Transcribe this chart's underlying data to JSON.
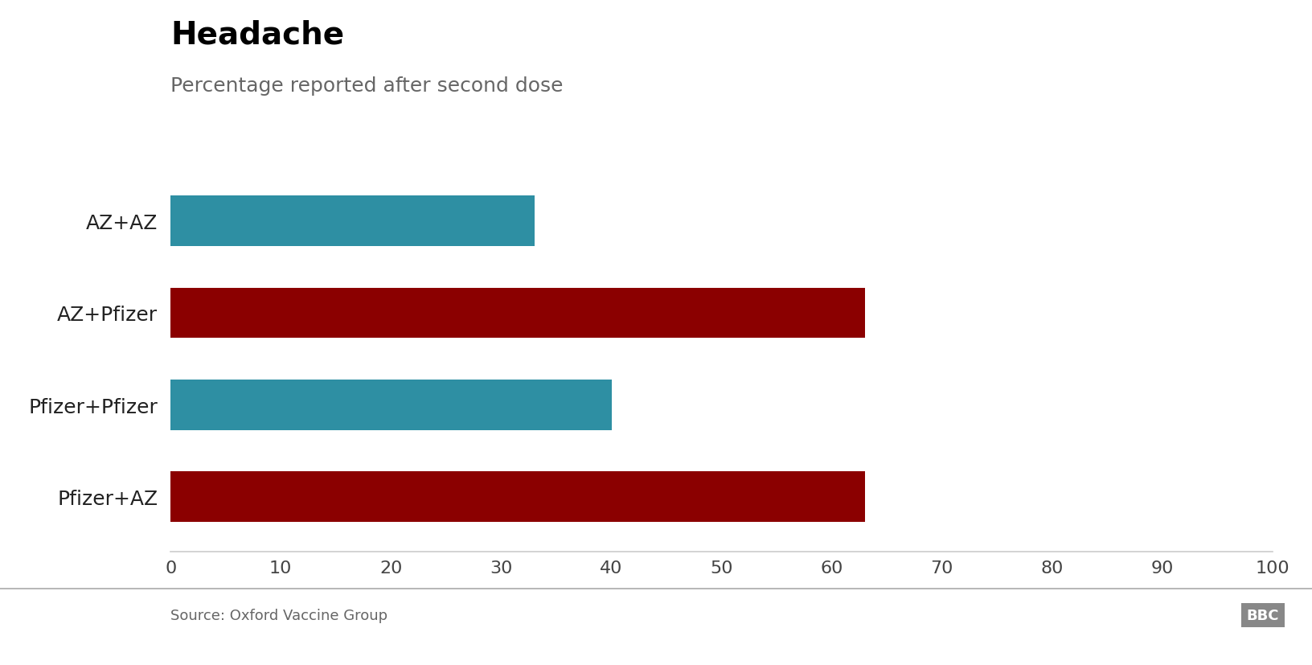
{
  "title": "Headache",
  "subtitle": "Percentage reported after second dose",
  "categories": [
    "AZ+AZ",
    "AZ+Pfizer",
    "Pfizer+Pfizer",
    "Pfizer+AZ"
  ],
  "values": [
    33,
    63,
    40,
    63
  ],
  "bar_colors": [
    "#2e8fa3",
    "#8b0000",
    "#2e8fa3",
    "#8b0000"
  ],
  "xlim": [
    0,
    100
  ],
  "xticks": [
    0,
    10,
    20,
    30,
    40,
    50,
    60,
    70,
    80,
    90,
    100
  ],
  "source_text": "Source: Oxford Vaccine Group",
  "bbc_text": "BBC",
  "title_fontsize": 28,
  "subtitle_fontsize": 18,
  "tick_fontsize": 16,
  "label_fontsize": 18,
  "source_fontsize": 13,
  "title_color": "#000000",
  "subtitle_color": "#666666",
  "tick_color": "#444444",
  "label_color": "#222222",
  "source_color": "#666666",
  "background_color": "#ffffff",
  "bar_height": 0.55,
  "spine_color": "#cccccc",
  "bbc_bg_color": "#888888",
  "bbc_text_color": "#ffffff",
  "line_color": "#aaaaaa"
}
